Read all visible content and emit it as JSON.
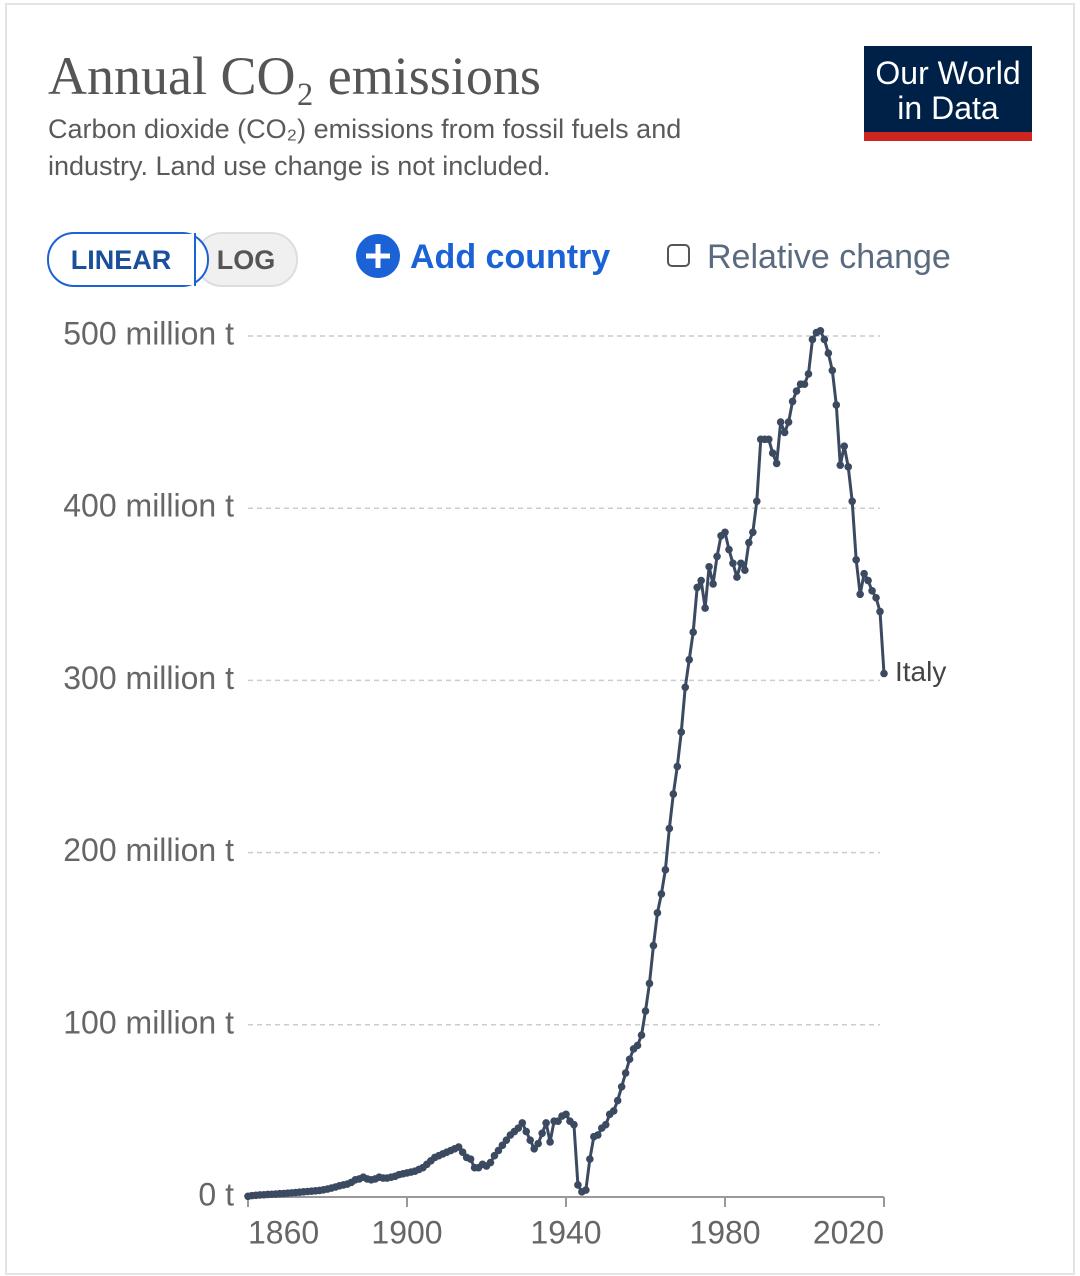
{
  "header": {
    "title": "Annual CO₂ emissions",
    "subtitle_lines": [
      "Carbon dioxide (CO₂) emissions from fossil fuels and",
      "industry. Land use change is not included."
    ]
  },
  "logo": [
    "Our World",
    "in Data"
  ],
  "controls": {
    "linear": "LINEAR",
    "log": "LOG",
    "add_country": "Add country",
    "relative_change": "Relative change"
  },
  "chart_data": {
    "type": "line",
    "x": [
      1860,
      1861,
      1862,
      1863,
      1864,
      1865,
      1866,
      1867,
      1868,
      1869,
      1870,
      1871,
      1872,
      1873,
      1874,
      1875,
      1876,
      1877,
      1878,
      1879,
      1880,
      1881,
      1882,
      1883,
      1884,
      1885,
      1886,
      1887,
      1888,
      1889,
      1890,
      1891,
      1892,
      1893,
      1894,
      1895,
      1896,
      1897,
      1898,
      1899,
      1900,
      1901,
      1902,
      1903,
      1904,
      1905,
      1906,
      1907,
      1908,
      1909,
      1910,
      1911,
      1912,
      1913,
      1914,
      1915,
      1916,
      1917,
      1918,
      1919,
      1920,
      1921,
      1922,
      1923,
      1924,
      1925,
      1926,
      1927,
      1928,
      1929,
      1930,
      1931,
      1932,
      1933,
      1934,
      1935,
      1936,
      1937,
      1938,
      1939,
      1940,
      1941,
      1942,
      1943,
      1944,
      1945,
      1946,
      1947,
      1948,
      1949,
      1950,
      1951,
      1952,
      1953,
      1954,
      1955,
      1956,
      1957,
      1958,
      1959,
      1960,
      1961,
      1962,
      1963,
      1964,
      1965,
      1966,
      1967,
      1968,
      1969,
      1970,
      1971,
      1972,
      1973,
      1974,
      1975,
      1976,
      1977,
      1978,
      1979,
      1980,
      1981,
      1982,
      1983,
      1984,
      1985,
      1986,
      1987,
      1988,
      1989,
      1990,
      1991,
      1992,
      1993,
      1994,
      1995,
      1996,
      1997,
      1998,
      1999,
      2000,
      2001,
      2002,
      2003,
      2004,
      2005,
      2006,
      2007,
      2008,
      2009,
      2010,
      2011,
      2012,
      2013,
      2014,
      2015,
      2016,
      2017,
      2018,
      2019,
      2020
    ],
    "series": [
      {
        "name": "Italy",
        "color": "#3c4a61",
        "values": [
          0.4,
          0.8,
          1,
          1.2,
          1.3,
          1.5,
          1.6,
          1.7,
          1.9,
          2,
          2.2,
          2.4,
          2.6,
          2.8,
          3,
          3.2,
          3.4,
          3.6,
          3.8,
          4.2,
          4.6,
          5.2,
          5.8,
          6.5,
          7,
          7.5,
          8.5,
          10,
          10.5,
          11.5,
          10.5,
          10,
          10.5,
          11.5,
          11,
          11,
          11.5,
          12,
          13,
          13.5,
          14,
          14.5,
          15,
          16,
          17,
          19,
          21,
          23,
          24,
          25,
          26,
          27,
          28,
          29,
          26,
          23,
          22,
          17,
          17,
          19,
          18,
          20,
          24,
          27,
          30,
          33,
          36,
          38,
          40,
          43,
          38,
          33,
          28,
          31,
          37,
          43,
          32,
          44,
          44,
          47,
          48,
          44,
          42,
          7,
          3,
          4,
          22,
          35,
          36,
          40,
          42,
          48,
          50,
          56,
          64,
          72,
          80,
          86,
          88,
          94,
          108,
          124,
          146,
          165,
          176,
          190,
          214,
          234,
          250,
          270,
          296,
          312,
          328,
          354,
          358,
          342,
          366,
          356,
          372,
          384,
          386,
          376,
          368,
          360,
          368,
          364,
          380,
          386,
          404,
          440,
          440,
          440,
          432,
          426,
          450,
          444,
          450,
          462,
          468,
          472,
          472,
          478,
          498,
          502,
          503,
          498,
          490,
          480,
          460,
          425,
          436,
          424,
          404,
          370,
          350,
          362,
          358,
          352,
          348,
          340,
          304
        ]
      }
    ],
    "xlim": [
      1860,
      2020
    ],
    "xticks": [
      1860,
      1900,
      1940,
      1980,
      2020
    ],
    "ylim": [
      0,
      500
    ],
    "yticks": [
      {
        "value": 0,
        "label": "0 t"
      },
      {
        "value": 100,
        "label": "100 million t"
      },
      {
        "value": 200,
        "label": "200 million t"
      },
      {
        "value": 300,
        "label": "300 million t"
      },
      {
        "value": 400,
        "label": "400 million t"
      },
      {
        "value": 500,
        "label": "500 million t"
      }
    ],
    "grid": true
  }
}
